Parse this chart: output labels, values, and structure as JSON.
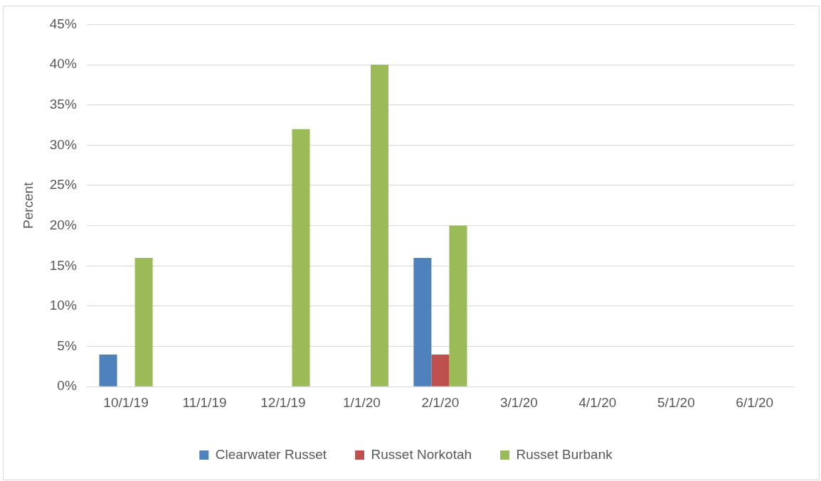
{
  "chart_data": {
    "type": "bar",
    "ylabel": "Percent",
    "categories": [
      "10/1/19",
      "11/1/19",
      "12/1/19",
      "1/1/20",
      "2/1/20",
      "3/1/20",
      "4/1/20",
      "5/1/20",
      "6/1/20"
    ],
    "series": [
      {
        "name": "Clearwater Russet",
        "color": "#4f81bd",
        "values": [
          4,
          0,
          0,
          0,
          16,
          0,
          0,
          0,
          0
        ]
      },
      {
        "name": "Russet Norkotah",
        "color": "#c0504d",
        "values": [
          0,
          0,
          0,
          0,
          4,
          0,
          0,
          0,
          0
        ]
      },
      {
        "name": "Russet Burbank",
        "color": "#9bbb59",
        "values": [
          16,
          0,
          32,
          40,
          20,
          0,
          0,
          0,
          0
        ]
      }
    ],
    "ylim": [
      0,
      45
    ],
    "yticks": [
      {
        "value": 0,
        "label": "0%"
      },
      {
        "value": 5,
        "label": "5%"
      },
      {
        "value": 10,
        "label": "10%"
      },
      {
        "value": 15,
        "label": "15%"
      },
      {
        "value": 20,
        "label": "20%"
      },
      {
        "value": 25,
        "label": "25%"
      },
      {
        "value": 30,
        "label": "30%"
      },
      {
        "value": 35,
        "label": "35%"
      },
      {
        "value": 40,
        "label": "40%"
      },
      {
        "value": 45,
        "label": "45%"
      }
    ],
    "grid": "y",
    "legend": "bottom"
  }
}
